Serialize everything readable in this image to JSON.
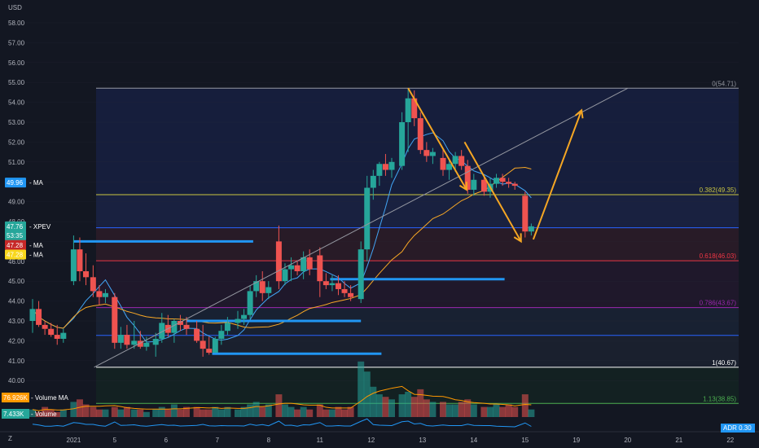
{
  "chart_data": {
    "type": "candlestick",
    "symbol": "XPEV",
    "currency": "USD",
    "y_axis": {
      "range": [
        38.2,
        59.2
      ],
      "ticks": [
        "58.00",
        "57.00",
        "56.00",
        "55.00",
        "54.00",
        "53.00",
        "52.00",
        "51.00",
        "50.00",
        "49.00",
        "48.00",
        "47.00",
        "46.00",
        "45.00",
        "44.00",
        "43.00",
        "42.00",
        "41.00",
        "40.00"
      ]
    },
    "x_axis": {
      "ticks": [
        {
          "label": "2021",
          "bar": 4
        },
        {
          "label": "5",
          "bar": 8
        },
        {
          "label": "6",
          "bar": 13
        },
        {
          "label": "7",
          "bar": 18
        },
        {
          "label": "8",
          "bar": 23
        },
        {
          "label": "11",
          "bar": 28
        },
        {
          "label": "12",
          "bar": 33
        },
        {
          "label": "13",
          "bar": 38
        },
        {
          "label": "14",
          "bar": 43
        },
        {
          "label": "15",
          "bar": 48
        },
        {
          "label": "19",
          "bar": 53
        },
        {
          "label": "20",
          "bar": 58
        },
        {
          "label": "21",
          "bar": 63
        },
        {
          "label": "22",
          "bar": 68
        }
      ]
    },
    "candles": [
      [
        0,
        43.0,
        44.1,
        42.4,
        43.6
      ],
      [
        0.6,
        43.6,
        44.0,
        42.7,
        42.8
      ],
      [
        1.2,
        42.8,
        43.0,
        42.3,
        42.6
      ],
      [
        1.8,
        42.6,
        42.9,
        42.2,
        42.3
      ],
      [
        2.4,
        42.3,
        42.8,
        41.8,
        42.1
      ],
      [
        3.0,
        42.1,
        42.6,
        41.9,
        42.4
      ],
      [
        4.0,
        45.0,
        47.3,
        44.8,
        46.6
      ],
      [
        4.6,
        46.6,
        47.2,
        45.0,
        45.5
      ],
      [
        5.2,
        45.5,
        46.4,
        44.8,
        45.2
      ],
      [
        5.9,
        45.2,
        45.8,
        44.2,
        44.5
      ],
      [
        6.5,
        44.5,
        44.8,
        43.8,
        44.2
      ],
      [
        7.1,
        44.2,
        44.6,
        43.9,
        44.4
      ],
      [
        8.0,
        44.2,
        44.4,
        41.6,
        41.9
      ],
      [
        8.6,
        41.9,
        42.7,
        41.6,
        42.3
      ],
      [
        9.2,
        42.3,
        42.8,
        41.6,
        41.8
      ],
      [
        9.9,
        41.8,
        43.0,
        41.6,
        42.0
      ],
      [
        10.5,
        42.0,
        42.5,
        41.6,
        41.7
      ],
      [
        11.1,
        41.7,
        42.2,
        41.5,
        41.9
      ],
      [
        12.0,
        41.8,
        42.4,
        41.2,
        42.1
      ],
      [
        12.6,
        42.1,
        43.4,
        41.9,
        42.9
      ],
      [
        13.2,
        42.8,
        43.3,
        42.2,
        42.4
      ],
      [
        13.8,
        42.4,
        43.1,
        41.9,
        43.0
      ],
      [
        14.4,
        43.0,
        43.3,
        42.5,
        42.8
      ],
      [
        15.0,
        42.8,
        43.2,
        42.3,
        42.6
      ],
      [
        16.0,
        42.6,
        43.0,
        41.9,
        42.0
      ],
      [
        16.6,
        42.0,
        42.8,
        41.2,
        41.6
      ],
      [
        17.2,
        41.6,
        42.2,
        41.3,
        41.4
      ],
      [
        17.8,
        41.4,
        42.2,
        41.4,
        42.1
      ],
      [
        18.4,
        42.1,
        42.8,
        41.8,
        42.5
      ],
      [
        19.0,
        42.5,
        43.2,
        42.3,
        42.9
      ],
      [
        20.0,
        42.9,
        43.5,
        42.6,
        43.1
      ],
      [
        20.6,
        43.1,
        43.6,
        42.8,
        43.3
      ],
      [
        21.2,
        43.3,
        44.8,
        43.1,
        44.5
      ],
      [
        21.8,
        44.5,
        45.3,
        44.2,
        45.0
      ],
      [
        22.4,
        45.0,
        45.5,
        44.0,
        44.4
      ],
      [
        23.0,
        44.4,
        45.0,
        44.1,
        44.7
      ],
      [
        24.0,
        47.0,
        47.8,
        44.6,
        45.0
      ],
      [
        24.6,
        45.0,
        45.9,
        44.8,
        45.6
      ],
      [
        25.2,
        45.6,
        46.2,
        45.0,
        45.8
      ],
      [
        25.8,
        45.8,
        46.0,
        45.3,
        45.5
      ],
      [
        26.4,
        45.5,
        46.5,
        45.1,
        46.2
      ],
      [
        27.0,
        46.2,
        46.6,
        45.3,
        45.6
      ],
      [
        28.0,
        46.3,
        46.7,
        44.2,
        45.0
      ],
      [
        28.6,
        45.0,
        45.4,
        44.6,
        44.8
      ],
      [
        29.2,
        44.8,
        45.3,
        44.5,
        44.9
      ],
      [
        29.8,
        44.9,
        45.3,
        44.3,
        44.6
      ],
      [
        30.4,
        44.6,
        45.0,
        44.2,
        44.4
      ],
      [
        31.0,
        44.4,
        44.8,
        44.0,
        44.2
      ],
      [
        32.0,
        44.1,
        47.0,
        43.9,
        46.6
      ],
      [
        32.6,
        46.6,
        50.3,
        46.0,
        49.7
      ],
      [
        33.2,
        49.7,
        50.6,
        49.1,
        50.3
      ],
      [
        33.8,
        50.3,
        51.0,
        49.8,
        50.9
      ],
      [
        34.4,
        50.9,
        51.4,
        50.3,
        50.6
      ],
      [
        35.0,
        50.6,
        51.2,
        50.2,
        51.0
      ],
      [
        36.0,
        50.8,
        53.5,
        50.6,
        53.0
      ],
      [
        36.6,
        53.0,
        54.7,
        51.5,
        54.2
      ],
      [
        37.2,
        54.2,
        54.6,
        52.8,
        53.2
      ],
      [
        37.8,
        53.2,
        53.5,
        51.4,
        51.6
      ],
      [
        38.4,
        51.6,
        52.0,
        51.0,
        51.3
      ],
      [
        39.0,
        51.3,
        51.7,
        50.9,
        51.5
      ],
      [
        40.0,
        51.2,
        51.6,
        50.3,
        50.6
      ],
      [
        40.6,
        50.6,
        51.1,
        50.1,
        50.9
      ],
      [
        41.2,
        50.9,
        51.5,
        50.5,
        51.3
      ],
      [
        41.8,
        51.3,
        51.6,
        50.6,
        50.8
      ],
      [
        42.4,
        50.8,
        51.1,
        49.4,
        49.6
      ],
      [
        43.0,
        49.6,
        50.4,
        49.3,
        50.1
      ],
      [
        44.0,
        50.1,
        50.3,
        49.3,
        49.5
      ],
      [
        44.6,
        49.5,
        50.2,
        49.2,
        49.9
      ],
      [
        45.2,
        49.9,
        50.4,
        49.7,
        50.2
      ],
      [
        45.8,
        50.2,
        50.4,
        49.8,
        50.0
      ],
      [
        46.4,
        50.0,
        50.2,
        49.7,
        49.9
      ],
      [
        47.0,
        49.9,
        50.0,
        49.6,
        49.8
      ],
      [
        48.0,
        49.3,
        49.5,
        47.2,
        47.5
      ],
      [
        48.6,
        47.5,
        47.9,
        47.3,
        47.76
      ]
    ],
    "volume": [
      3,
      2,
      4,
      3,
      2,
      3,
      6,
      7,
      5,
      4,
      3,
      3,
      4,
      3,
      4,
      3,
      3,
      2,
      3,
      4,
      3,
      5,
      3,
      4,
      4,
      3,
      3,
      4,
      3,
      4,
      3,
      4,
      5,
      6,
      4,
      5,
      9,
      5,
      4,
      3,
      4,
      3,
      5,
      3,
      3,
      4,
      3,
      4,
      22,
      18,
      12,
      9,
      8,
      7,
      9,
      10,
      8,
      11,
      7,
      6,
      6,
      5,
      5,
      6,
      7,
      5,
      4,
      4,
      5,
      4,
      5,
      4,
      9,
      3
    ],
    "fib_levels": [
      {
        "ratio": "0",
        "value": "54.71",
        "label": "0(54.71)",
        "color": "#9598a1"
      },
      {
        "ratio": "0.382",
        "value": "49.35",
        "label": "0.382(49.35)",
        "color": "#c9c541"
      },
      {
        "ratio": "0.5",
        "value": "47.69",
        "label": "",
        "color": "#2962ff"
      },
      {
        "ratio": "0.618",
        "value": "46.03",
        "label": "0.618(46.03)",
        "color": "#f23645"
      },
      {
        "ratio": "0.786",
        "value": "43.67",
        "label": "0.786(43.67)",
        "color": "#9c27b0"
      },
      {
        "ratio": "0.886",
        "value": "42.27",
        "label": "",
        "color": "#2962ff"
      },
      {
        "ratio": "1",
        "value": "40.67",
        "label": "1(40.67)",
        "color": "#ffffff"
      },
      {
        "ratio": "1.13",
        "value": "38.85",
        "label": "1.13(38.85)",
        "color": "#4caf50"
      }
    ],
    "badges": [
      {
        "label": "49.96",
        "name": "MA",
        "color": "#2196f3",
        "value": 49.96
      },
      {
        "label": "47.76",
        "name": "XPEV",
        "color": "#26a69a",
        "value": 47.76
      },
      {
        "label": "53:35",
        "name": "",
        "color": "#26a69a",
        "value": 47.3
      },
      {
        "label": "47.28",
        "name": "MA",
        "color": "#c62828",
        "value": 46.82
      },
      {
        "label": "47.28",
        "name": "MA",
        "color": "#f9d71c",
        "value": 46.34
      }
    ],
    "volume_badges": [
      {
        "label": "76.926K",
        "name": "Volume MA",
        "color": "#ff9800"
      },
      {
        "label": "7.433K",
        "name": "Volume",
        "color": "#26a69a"
      }
    ],
    "indicator_badge": {
      "label": "ADR",
      "value": "0.30",
      "color": "#2196f3"
    },
    "horizontal_lines": [
      {
        "value": 47.0,
        "from_bar": 4,
        "to_bar": 21.5
      },
      {
        "value": 45.1,
        "from_bar": 29,
        "to_bar": 46
      },
      {
        "value": 43.0,
        "from_bar": 15,
        "to_bar": 32
      },
      {
        "value": 41.35,
        "from_bar": 17.5,
        "to_bar": 34
      }
    ],
    "arrows": [
      {
        "from": [
          36.6,
          54.71
        ],
        "to": [
          42.3,
          49.6
        ]
      },
      {
        "from": [
          42.1,
          52.0
        ],
        "to": [
          47.6,
          47.0
        ]
      },
      {
        "from": [
          48.8,
          47.1
        ],
        "to": [
          53.5,
          53.6
        ]
      }
    ],
    "trendline": {
      "from": [
        6,
        40.67
      ],
      "to": [
        58,
        54.71
      ]
    }
  }
}
